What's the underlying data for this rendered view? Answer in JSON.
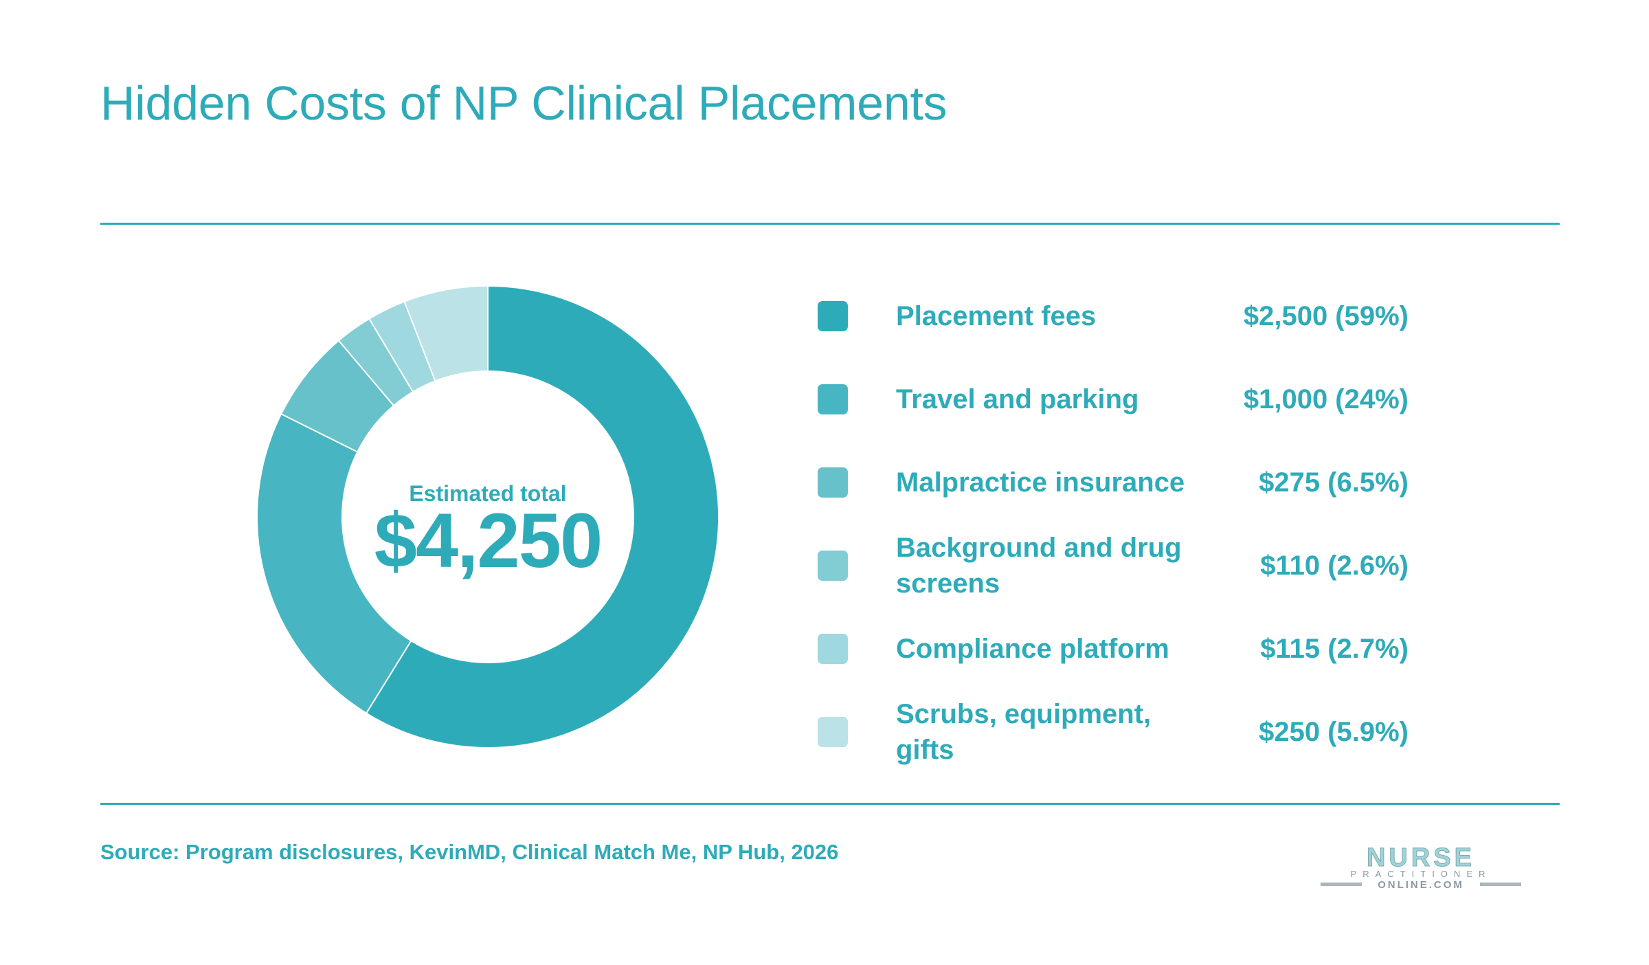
{
  "title": "Hidden Costs of NP Clinical Placements",
  "center": {
    "label": "Estimated total",
    "value": "$4,250"
  },
  "source": "Source: Program disclosures, KevinMD, Clinical Match Me, NP Hub, 2026",
  "logo": {
    "line1": "NURSE",
    "line2": "PRACTITIONER",
    "line3": "ONLINE.COM"
  },
  "colors": {
    "accent": "#2eabb9"
  },
  "chart_data": {
    "type": "pie",
    "title": "Hidden Costs of NP Clinical Placements",
    "total": 4250,
    "slices": [
      {
        "label": "Placement fees",
        "value": 2500,
        "display": "$2,500 (59%)",
        "color": "#2eabb9"
      },
      {
        "label": "Travel and parking",
        "value": 1000,
        "display": "$1,000 (24%)",
        "color": "#47b6c2"
      },
      {
        "label": "Malpractice insurance",
        "value": 275,
        "display": "$275 (6.5%)",
        "color": "#66c1cb"
      },
      {
        "label": "Background and drug screens",
        "value": 110,
        "display": "$110 (2.6%)",
        "color": "#82ccd4"
      },
      {
        "label": "Compliance platform",
        "value": 115,
        "display": "$115 (2.7%)",
        "color": "#9fd8de"
      },
      {
        "label": "Scrubs, equipment, gifts",
        "value": 250,
        "display": "$250 (5.9%)",
        "color": "#bae2e7"
      }
    ]
  }
}
